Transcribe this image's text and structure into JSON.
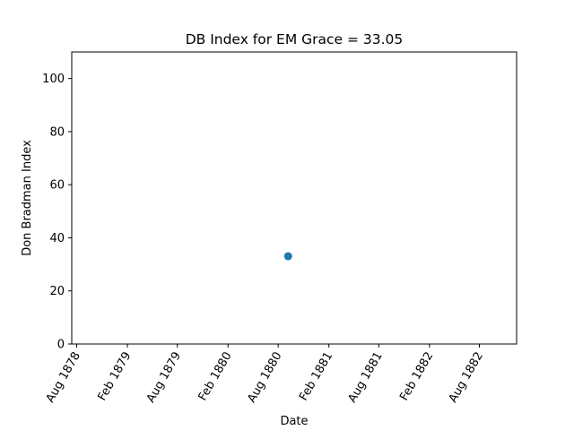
{
  "chart_data": {
    "type": "scatter",
    "title": "DB Index for EM Grace = 33.05",
    "xlabel": "Date",
    "ylabel": "Don Bradman Index",
    "xlim": [
      "1878-07-14",
      "1882-12-14"
    ],
    "ylim": [
      0,
      110
    ],
    "yticks": [
      0,
      20,
      40,
      60,
      80,
      100
    ],
    "xticks": [
      {
        "date": "1878-08-01",
        "label": "Aug 1878"
      },
      {
        "date": "1879-02-01",
        "label": "Feb 1879"
      },
      {
        "date": "1879-08-01",
        "label": "Aug 1879"
      },
      {
        "date": "1880-02-01",
        "label": "Feb 1880"
      },
      {
        "date": "1880-08-01",
        "label": "Aug 1880"
      },
      {
        "date": "1881-02-01",
        "label": "Feb 1881"
      },
      {
        "date": "1881-08-01",
        "label": "Aug 1881"
      },
      {
        "date": "1882-02-01",
        "label": "Feb 1882"
      },
      {
        "date": "1882-08-01",
        "label": "Aug 1882"
      }
    ],
    "points": [
      {
        "x": "1880-09-06",
        "y": 33.05
      }
    ],
    "marker_color": "#1f77b4",
    "grid": false
  }
}
